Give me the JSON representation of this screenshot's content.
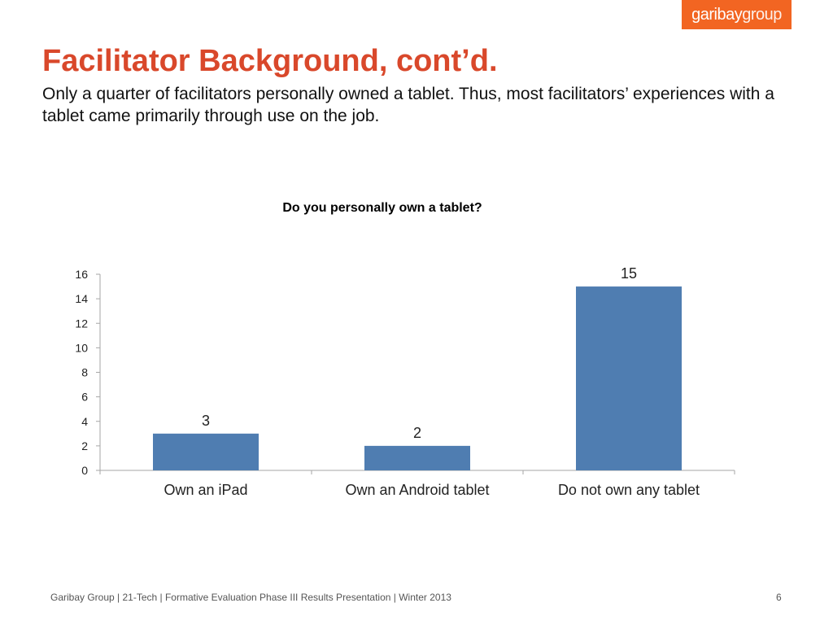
{
  "logo": {
    "part1": "garibay",
    "part2": "group",
    "color": "#f26522"
  },
  "slide": {
    "title": "Facilitator Background, cont’d.",
    "subtitle": "Only a quarter of facilitators personally owned a tablet. Thus, most facilitators’ experiences with a tablet came primarily through use on the job.",
    "footer": "Garibay Group | 21-Tech | Formative Evaluation Phase III Results Presentation | Winter 2013",
    "page_number": "6"
  },
  "chart_data": {
    "type": "bar",
    "title": "Do you personally own a tablet?",
    "categories": [
      "Own an iPad",
      "Own an Android tablet",
      "Do not own any tablet"
    ],
    "values": [
      3,
      2,
      15
    ],
    "yticks": [
      0,
      2,
      4,
      6,
      8,
      10,
      12,
      14,
      16
    ],
    "ylim": [
      0,
      16
    ],
    "xlabel": "",
    "ylabel": "",
    "grid": false,
    "legend": "none",
    "bar_color": "#4f7db1",
    "data_labels": true
  }
}
